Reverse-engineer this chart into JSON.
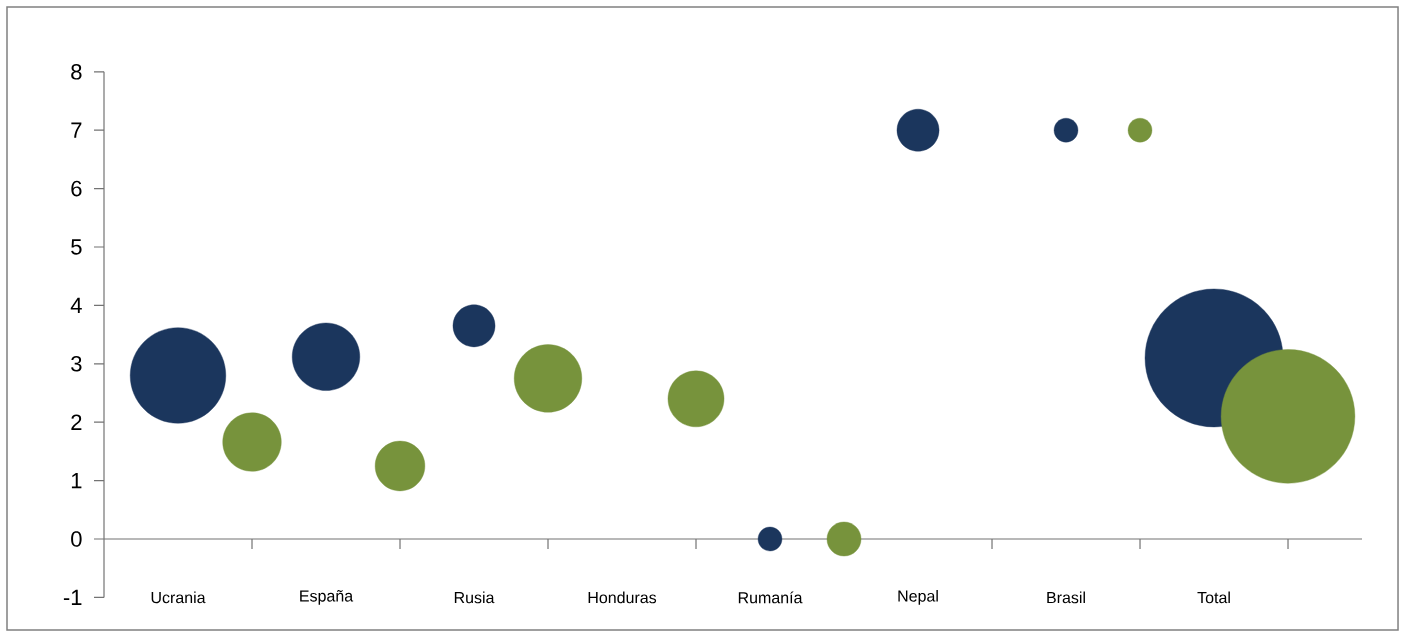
{
  "chart_data": {
    "type": "bubble",
    "categories": [
      "Ucrania",
      null,
      "España",
      null,
      "Rusia",
      null,
      "Honduras",
      null,
      "Rumanía",
      null,
      "Nepal",
      null,
      "Brasil",
      null,
      "Total",
      null
    ],
    "ylim": [
      -1,
      8
    ],
    "yticks": [
      -1,
      0,
      1,
      2,
      3,
      4,
      5,
      6,
      7,
      8
    ],
    "series": [
      {
        "color": "#1b365d",
        "values": [
          2.8,
          null,
          3.12,
          null,
          3.65,
          null,
          null,
          null,
          0,
          null,
          7,
          null,
          7,
          null,
          3.1,
          null
        ],
        "sizes": [
          0.48,
          null,
          0.24,
          null,
          0.093,
          null,
          null,
          null,
          0.03,
          null,
          0.093,
          null,
          0.03,
          null,
          1,
          null
        ]
      },
      {
        "color": "#77933c",
        "values": [
          null,
          1.66,
          null,
          1.25,
          null,
          2.75,
          null,
          2.4,
          null,
          0,
          null,
          null,
          null,
          7,
          null,
          2.1
        ],
        "sizes": [
          null,
          0.18,
          null,
          0.13,
          null,
          0.24,
          null,
          0.165,
          null,
          0.061,
          null,
          null,
          null,
          0.03,
          null,
          0.94
        ]
      }
    ]
  }
}
